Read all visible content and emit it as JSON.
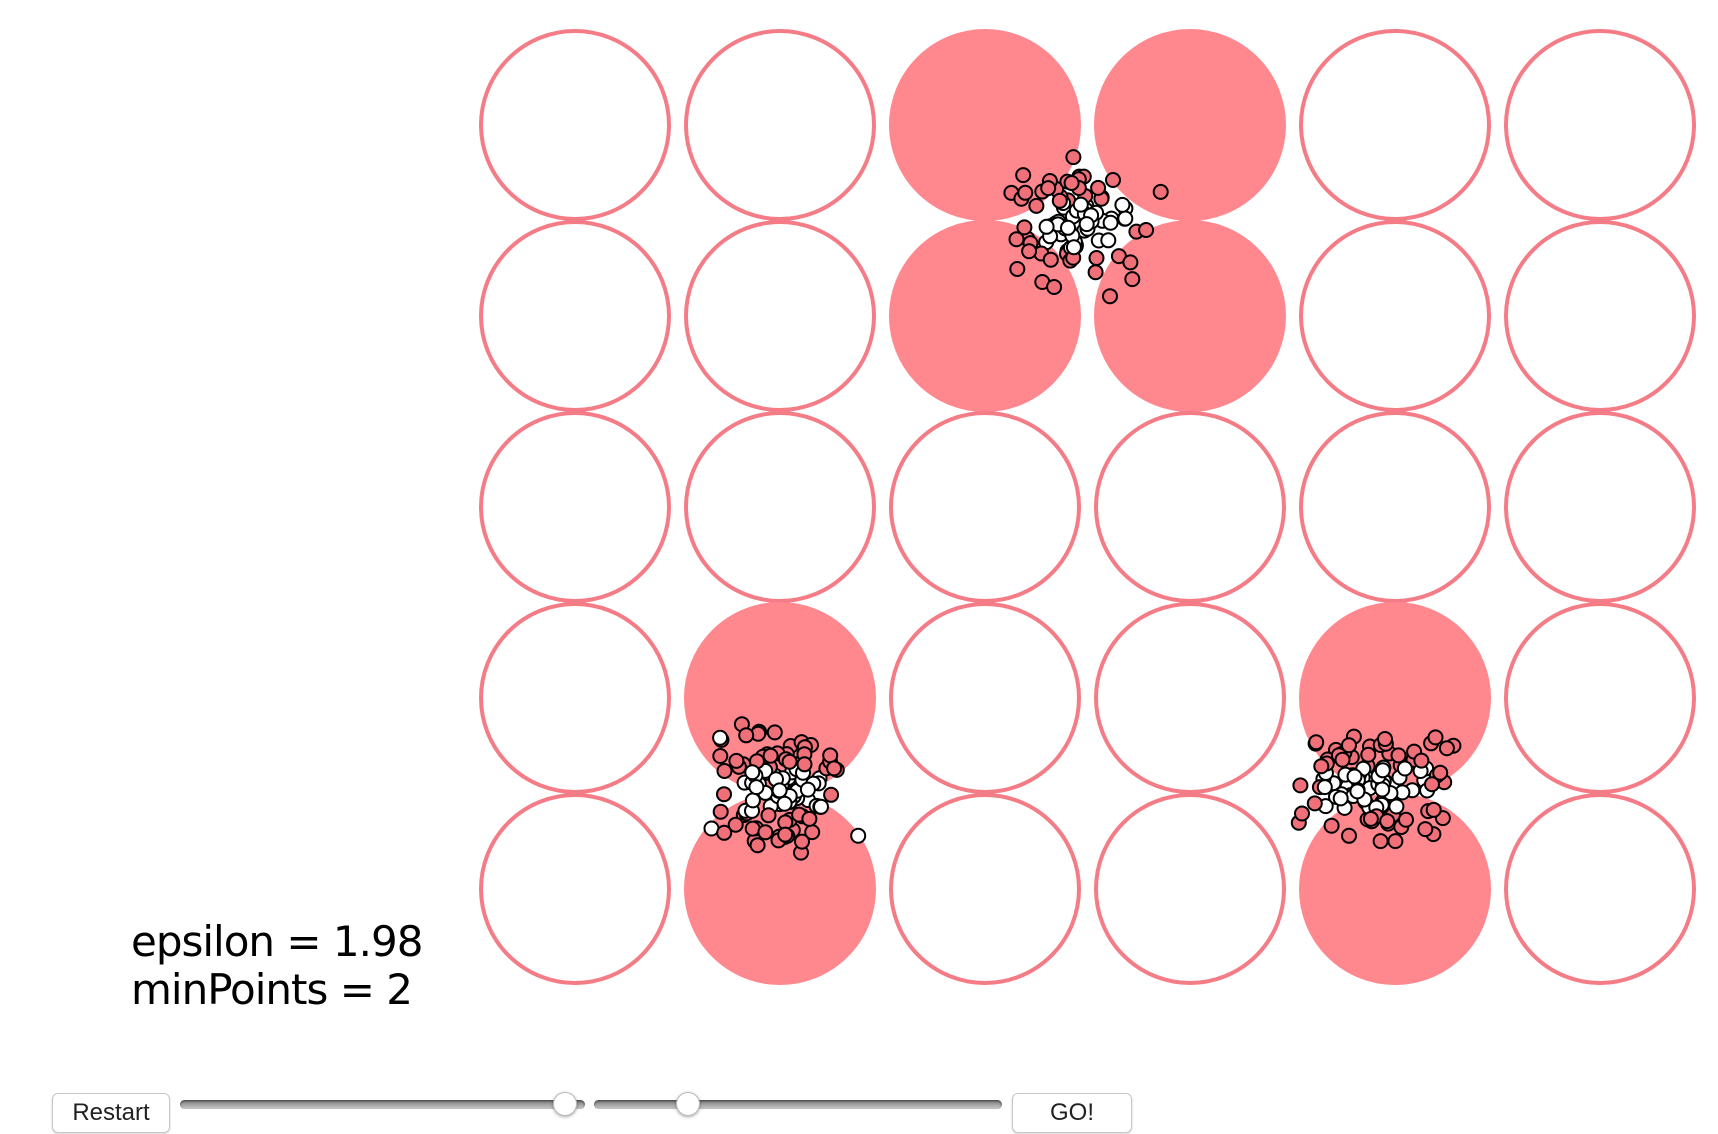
{
  "display": {
    "epsilon_label": "epsilon = 1.98",
    "minpoints_label": "minPoints = 2"
  },
  "controls": {
    "restart_label": "Restart",
    "go_label": "GO!",
    "epsilon_slider_fraction": 0.95,
    "minpoints_slider_fraction": 0.23
  },
  "colors": {
    "circle_stroke": "#f47c86",
    "circle_fill": "#ff878e",
    "point_clustered": "#ef7078",
    "point_unclustered": "#ffffff",
    "point_stroke": "#000000"
  },
  "grid": {
    "rows": 5,
    "cols": 6,
    "filled_cells": [
      [
        0,
        2
      ],
      [
        0,
        3
      ],
      [
        1,
        2
      ],
      [
        1,
        3
      ],
      [
        3,
        1
      ],
      [
        4,
        1
      ],
      [
        3,
        4
      ],
      [
        4,
        4
      ]
    ]
  }
}
